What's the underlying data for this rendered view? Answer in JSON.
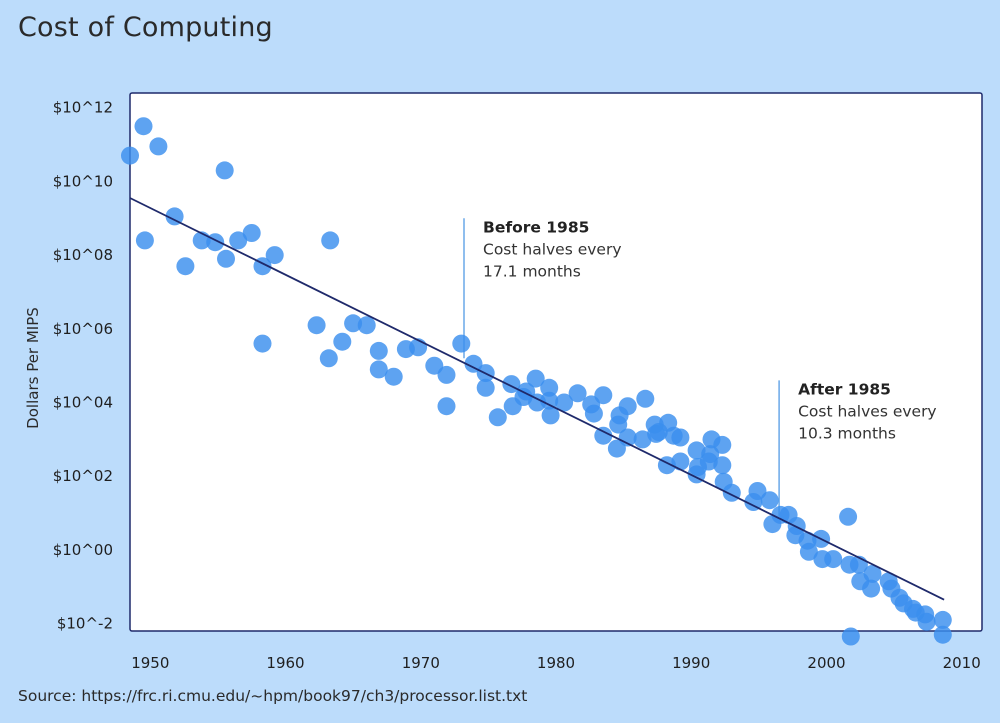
{
  "chart_data": {
    "type": "scatter",
    "title": "Cost of Computing",
    "source": "Source: https://frc.ri.cmu.edu/~hpm/book97/ch3/processor.list.txt",
    "ylabel": "Dollars Per MIPS",
    "xlabel": "",
    "xlim": [
      1948.5,
      2011.5
    ],
    "ylim_log10": [
      -2.2,
      12.4
    ],
    "y_scale": "log10",
    "x_ticks": [
      "1950",
      "1960",
      "1970",
      "1980",
      "1990",
      "2000",
      "2010"
    ],
    "y_ticks": [
      "$10^12",
      "$10^10",
      "$10^08",
      "$10^06",
      "$10^04",
      "$10^02",
      "$10^00",
      "$10^-2"
    ],
    "grid": false,
    "colors": {
      "point": "#3b8fee",
      "trend": "#1f2a6b",
      "annotation_line": "#6aa8e8",
      "background": "#bcdcfb",
      "plot_bg": "#ffffff"
    },
    "trend_line": {
      "x": [
        1948.5,
        2008.7
      ],
      "log10_y": [
        9.55,
        -1.35
      ]
    },
    "points_log10": [
      [
        1948.5,
        10.7
      ],
      [
        1949.5,
        11.5
      ],
      [
        1950.6,
        10.95
      ],
      [
        1949.6,
        8.4
      ],
      [
        1951.8,
        9.05
      ],
      [
        1952.6,
        7.7
      ],
      [
        1953.8,
        8.4
      ],
      [
        1954.8,
        8.35
      ],
      [
        1955.5,
        10.3
      ],
      [
        1955.6,
        7.9
      ],
      [
        1956.5,
        8.4
      ],
      [
        1957.5,
        8.6
      ],
      [
        1958.3,
        7.7
      ],
      [
        1958.3,
        5.6
      ],
      [
        1959.2,
        8.0
      ],
      [
        1962.3,
        6.1
      ],
      [
        1963.2,
        5.2
      ],
      [
        1963.3,
        8.4
      ],
      [
        1964.2,
        5.65
      ],
      [
        1965.0,
        6.15
      ],
      [
        1966.0,
        6.1
      ],
      [
        1966.9,
        5.4
      ],
      [
        1966.9,
        4.9
      ],
      [
        1968.0,
        4.7
      ],
      [
        1968.9,
        5.45
      ],
      [
        1969.8,
        5.5
      ],
      [
        1971.0,
        5.0
      ],
      [
        1971.9,
        4.75
      ],
      [
        1971.9,
        3.9
      ],
      [
        1973.0,
        5.6
      ],
      [
        1973.9,
        5.05
      ],
      [
        1974.8,
        4.8
      ],
      [
        1974.8,
        4.4
      ],
      [
        1975.7,
        3.6
      ],
      [
        1976.7,
        4.5
      ],
      [
        1976.8,
        3.9
      ],
      [
        1977.8,
        4.3
      ],
      [
        1977.6,
        4.15
      ],
      [
        1978.5,
        4.65
      ],
      [
        1978.6,
        4.0
      ],
      [
        1979.5,
        4.4
      ],
      [
        1979.5,
        4.05
      ],
      [
        1979.6,
        3.65
      ],
      [
        1980.6,
        4.0
      ],
      [
        1981.6,
        4.25
      ],
      [
        1982.6,
        3.95
      ],
      [
        1982.8,
        3.7
      ],
      [
        1983.5,
        4.2
      ],
      [
        1983.5,
        3.1
      ],
      [
        1984.5,
        2.75
      ],
      [
        1984.6,
        3.4
      ],
      [
        1984.7,
        3.65
      ],
      [
        1985.3,
        3.9
      ],
      [
        1985.3,
        3.05
      ],
      [
        1986.4,
        3.0
      ],
      [
        1986.6,
        4.1
      ],
      [
        1987.3,
        3.4
      ],
      [
        1987.4,
        3.15
      ],
      [
        1987.6,
        3.2
      ],
      [
        1988.2,
        2.3
      ],
      [
        1988.3,
        3.45
      ],
      [
        1988.7,
        3.1
      ],
      [
        1989.2,
        3.05
      ],
      [
        1989.2,
        2.4
      ],
      [
        1990.4,
        2.7
      ],
      [
        1990.4,
        2.05
      ],
      [
        1990.5,
        2.25
      ],
      [
        1991.3,
        2.4
      ],
      [
        1991.4,
        2.6
      ],
      [
        1991.5,
        3.0
      ],
      [
        1992.3,
        2.85
      ],
      [
        1992.3,
        2.3
      ],
      [
        1992.4,
        1.85
      ],
      [
        1993.0,
        1.55
      ],
      [
        1994.6,
        1.3
      ],
      [
        1994.9,
        1.6
      ],
      [
        1995.8,
        1.35
      ],
      [
        1996.0,
        0.7
      ],
      [
        1996.6,
        0.95
      ],
      [
        1997.2,
        0.95
      ],
      [
        1997.8,
        0.65
      ],
      [
        1997.7,
        0.4
      ],
      [
        1998.6,
        0.25
      ],
      [
        1998.7,
        -0.05
      ],
      [
        1999.6,
        0.3
      ],
      [
        1999.7,
        -0.25
      ],
      [
        2000.5,
        -0.25
      ],
      [
        2001.6,
        0.9
      ],
      [
        2001.7,
        -0.4
      ],
      [
        2002.4,
        -0.4
      ],
      [
        2002.5,
        -0.85
      ],
      [
        2003.3,
        -1.05
      ],
      [
        2003.4,
        -0.65
      ],
      [
        2004.6,
        -0.85
      ],
      [
        2004.8,
        -1.05
      ],
      [
        2005.4,
        -1.3
      ],
      [
        2005.7,
        -1.45
      ],
      [
        2006.4,
        -1.6
      ],
      [
        2006.6,
        -1.7
      ],
      [
        2007.3,
        -1.75
      ],
      [
        2007.4,
        -1.95
      ],
      [
        2008.6,
        -1.9
      ],
      [
        2008.6,
        -2.3
      ],
      [
        2001.8,
        -2.35
      ]
    ],
    "annotations": [
      {
        "title": "Before 1985",
        "lines": [
          "Cost halves every",
          "17.1 months"
        ],
        "x": 1973.2,
        "line_log10_range": [
          5.2,
          9.0
        ]
      },
      {
        "title": "After 1985",
        "lines": [
          "Cost halves every",
          "10.3 months"
        ],
        "x": 1996.5,
        "line_log10_range": [
          0.9,
          4.6
        ]
      }
    ]
  }
}
